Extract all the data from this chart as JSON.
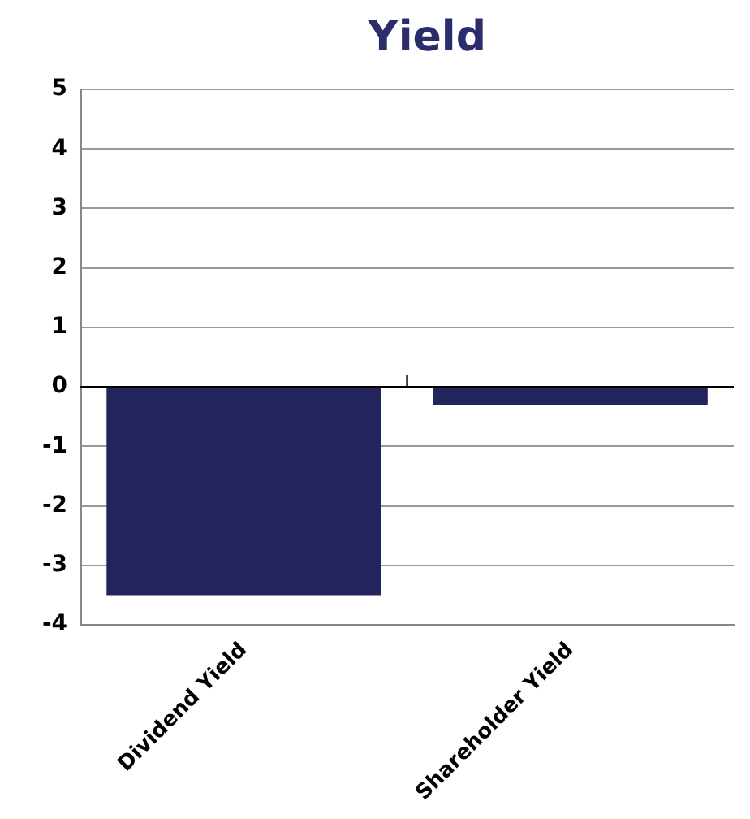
{
  "chart_data": {
    "type": "bar",
    "title": "Yield",
    "categories": [
      "Dividend Yield",
      "Shareholder Yield"
    ],
    "values": [
      -3.5,
      -0.3
    ],
    "color": "#22245b",
    "ylim": [
      -4,
      5
    ],
    "yticks": [
      -4,
      -3,
      -2,
      -1,
      0,
      1,
      2,
      3,
      4,
      5
    ],
    "grid": "y",
    "legend": false
  }
}
